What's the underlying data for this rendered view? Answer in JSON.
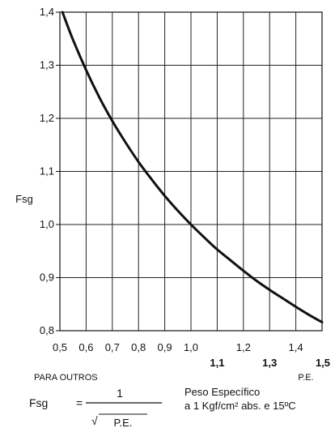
{
  "chart_data": {
    "type": "line",
    "ylabel": "Fsg",
    "x_ticks": [
      "0,5",
      "0,6",
      "0,7",
      "0,8",
      "0,9",
      "1,0",
      "1,2",
      "1,4"
    ],
    "x_ticks_bold": [
      "1,1",
      "1,3",
      "1,5"
    ],
    "x_tick_values": [
      0.5,
      0.6,
      0.7,
      0.8,
      0.9,
      1.0,
      1.2,
      1.4
    ],
    "x_tick_bold_values": [
      1.1,
      1.3,
      1.5
    ],
    "y_ticks": [
      "0,8",
      "0,9",
      "1,0",
      "1,1",
      "1,2",
      "1,3",
      "1,4"
    ],
    "y_tick_values": [
      0.8,
      0.9,
      1.0,
      1.1,
      1.2,
      1.3,
      1.4
    ],
    "xlim": [
      0.5,
      1.5
    ],
    "ylim": [
      0.8,
      1.4
    ],
    "x_grid_values": [
      0.5,
      0.6,
      0.7,
      0.8,
      0.9,
      1.0,
      1.1,
      1.2,
      1.3,
      1.4,
      1.5
    ],
    "y_grid_values": [
      0.8,
      0.9,
      1.0,
      1.1,
      1.2,
      1.3,
      1.4
    ],
    "grid": true,
    "series": [
      {
        "x": [
          0.51,
          0.55,
          0.6,
          0.65,
          0.7,
          0.75,
          0.8,
          0.85,
          0.9,
          0.95,
          1.0,
          1.05,
          1.1,
          1.15,
          1.2,
          1.25,
          1.3,
          1.35,
          1.4,
          1.45,
          1.5
        ],
        "y": [
          1.4,
          1.348,
          1.291,
          1.24,
          1.195,
          1.155,
          1.118,
          1.085,
          1.054,
          1.026,
          1.0,
          0.976,
          0.953,
          0.933,
          0.913,
          0.894,
          0.877,
          0.861,
          0.845,
          0.83,
          0.816
        ],
        "color": "#111111"
      }
    ]
  },
  "labels": {
    "para_outros": "PARA OUTROS",
    "pe_axis": "P.E."
  },
  "formula": {
    "lhs": "Fsg",
    "equals": "=",
    "numerator": "1",
    "sqrt_symbol": "√",
    "denominator": "P.E.",
    "desc_line1": "Peso Específico",
    "desc_line2": "a 1 Kgf/cm² abs. e 15ºC"
  }
}
